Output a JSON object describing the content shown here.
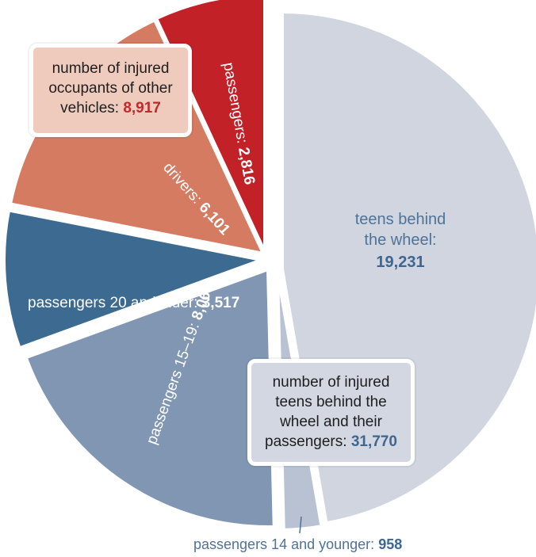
{
  "chart_data": {
    "type": "pie",
    "groups": [
      {
        "name": "teens behind the wheel and their passengers",
        "total": 31770
      },
      {
        "name": "injured occupants of other vehicles",
        "total": 8917
      }
    ],
    "slices": [
      {
        "key": "teens",
        "label": "teens behind the wheel:",
        "value": 19231,
        "display": "19,231",
        "color": "#d0d5e0"
      },
      {
        "key": "p14",
        "label": "passengers 14 and younger:",
        "value": 958,
        "display": "958",
        "color": "#b9c2d3"
      },
      {
        "key": "p1519",
        "label": "passengers 15–19:",
        "value": 8064,
        "display": "8,064",
        "color": "#8196b2"
      },
      {
        "key": "p20",
        "label": "passengers 20 and older:",
        "value": 3517,
        "display": "3,517",
        "color": "#3d6a90"
      },
      {
        "key": "drivers",
        "label": "drivers:",
        "value": 6101,
        "display": "6,101",
        "color": "#d57b62"
      },
      {
        "key": "passengers",
        "label": "passengers:",
        "value": 2816,
        "display": "2,816",
        "color": "#c22128"
      }
    ]
  },
  "callouts": {
    "others": {
      "line1": "number of injured",
      "line2": "occupants of other",
      "line3": "vehicles:",
      "value": "8,917"
    },
    "teens": {
      "line1": "number of injured",
      "line2": "teens behind the",
      "line3": "wheel and their",
      "line4": "passengers:",
      "value": "31,770"
    }
  },
  "labels": {
    "teens_line1": "teens behind",
    "teens_line2": "the wheel:",
    "teens_value": "19,231",
    "p1519_text": "passengers 15–19:",
    "p1519_value": "8,064",
    "p20_text": "passengers 20 and older:",
    "p20_value": "3,517",
    "drivers_text": "drivers:",
    "drivers_value": "6,101",
    "passengers_text": "passengers:",
    "passengers_value": "2,816",
    "p14_text": "passengers 14 and younger:",
    "p14_value": "958"
  }
}
